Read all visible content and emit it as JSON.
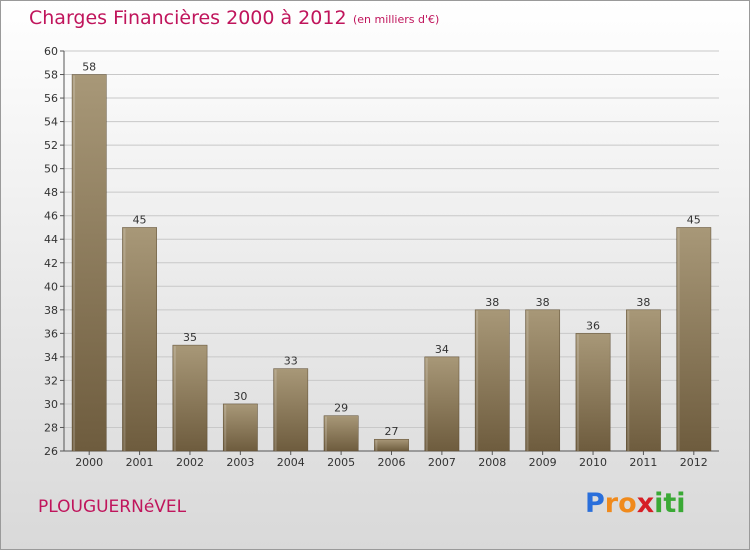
{
  "header": {
    "title": "Charges Financières 2000 à 2012",
    "subtitle": "(en milliers d'€)"
  },
  "footer": {
    "commune": "PLOUGUERNéVEL",
    "logo": {
      "text": "Proxiti",
      "letters": [
        "P",
        "r",
        "o",
        "x",
        "i",
        "t",
        "i"
      ],
      "letter_colors": [
        "#2a6fdb",
        "#f08a1c",
        "#f08a1c",
        "#d61f26",
        "#3aa935",
        "#3aa935",
        "#3aa935"
      ]
    }
  },
  "colors": {
    "title": "#c0155c",
    "bar_top": "#a89878",
    "bar_bottom": "#6e5c3e",
    "axis_text": "#333333",
    "grid": "#c8c8c8"
  },
  "chart_data": {
    "type": "bar",
    "categories": [
      "2000",
      "2001",
      "2002",
      "2003",
      "2004",
      "2005",
      "2006",
      "2007",
      "2008",
      "2009",
      "2010",
      "2011",
      "2012"
    ],
    "values": [
      58,
      45,
      35,
      30,
      33,
      29,
      27,
      34,
      38,
      38,
      36,
      38,
      45
    ],
    "data_labels": [
      "58",
      "45",
      "35",
      "30",
      "33",
      "29",
      "27",
      "34",
      "38",
      "38",
      "36",
      "38",
      "45"
    ],
    "ylim": [
      26,
      60
    ],
    "yticks": [
      26,
      28,
      30,
      32,
      34,
      36,
      38,
      40,
      42,
      44,
      46,
      48,
      50,
      52,
      54,
      56,
      58,
      60
    ],
    "grid": true,
    "title": "Charges Financières 2000 à 2012",
    "subtitle": "(en milliers d'€)"
  }
}
